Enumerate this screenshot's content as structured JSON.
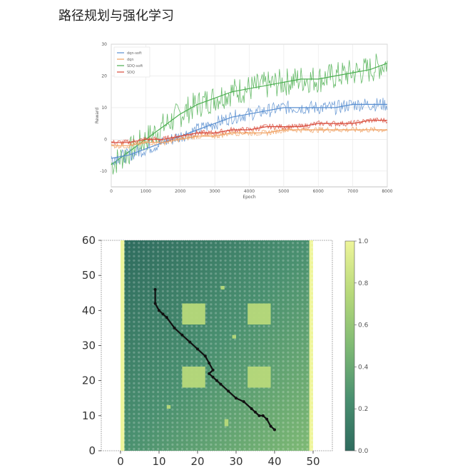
{
  "page": {
    "title": "路径规划与强化学习"
  },
  "colors": {
    "blue": "#5a8fd0",
    "orange": "#f0a060",
    "green": "#4caf50",
    "red": "#d84a3a"
  },
  "chart_data": [
    {
      "type": "line",
      "xlabel": "Epoch",
      "ylabel": "Reward",
      "xlim": [
        0,
        8000
      ],
      "ylim": [
        -15,
        30
      ],
      "xticks": [
        "0",
        "1000",
        "2000",
        "3000",
        "4000",
        "5000",
        "6000",
        "7000",
        "8000"
      ],
      "yticks": [
        "-10",
        "0",
        "10",
        "20",
        "30"
      ],
      "legend_position": "top-left",
      "grid": true,
      "series": [
        {
          "name": "dqn-soft",
          "color": "#5a8fd0",
          "x": [
            0,
            500,
            1000,
            1500,
            2000,
            2500,
            3000,
            3500,
            4000,
            4500,
            5000,
            5500,
            6000,
            6500,
            7000,
            7500,
            8000
          ],
          "values": [
            -6,
            -5,
            -3,
            -1,
            1,
            3,
            5,
            7,
            8,
            9,
            10,
            10,
            10,
            10,
            11,
            11,
            11
          ]
        },
        {
          "name": "dqn",
          "color": "#f0a060",
          "x": [
            0,
            500,
            1000,
            1500,
            2000,
            2500,
            3000,
            3500,
            4000,
            4500,
            5000,
            5500,
            6000,
            6500,
            7000,
            7500,
            8000
          ],
          "values": [
            -2,
            -2,
            -1,
            -1,
            0,
            1,
            1,
            2,
            2,
            2,
            3,
            3,
            3,
            3,
            3,
            3,
            3
          ]
        },
        {
          "name": "SDQ-soft",
          "color": "#4caf50",
          "x": [
            0,
            500,
            1000,
            1500,
            2000,
            2500,
            3000,
            3500,
            4000,
            4500,
            5000,
            5500,
            6000,
            6500,
            7000,
            7500,
            8000
          ],
          "values": [
            -8,
            -4,
            0,
            4,
            8,
            11,
            13,
            15,
            16,
            17,
            18,
            19,
            19,
            20,
            21,
            22,
            24
          ]
        },
        {
          "name": "SDQ",
          "color": "#d84a3a",
          "x": [
            0,
            500,
            1000,
            1500,
            2000,
            2500,
            3000,
            3500,
            4000,
            4500,
            5000,
            5500,
            6000,
            6500,
            7000,
            7500,
            8000
          ],
          "values": [
            -1,
            -1,
            0,
            0,
            1,
            2,
            2,
            3,
            3,
            4,
            4,
            4,
            5,
            5,
            5,
            6,
            6
          ]
        }
      ]
    },
    {
      "type": "heatmap",
      "xlim": [
        -5,
        55
      ],
      "ylim": [
        0,
        60
      ],
      "xticks": [
        "0",
        "10",
        "20",
        "30",
        "40",
        "50"
      ],
      "yticks": [
        "0",
        "10",
        "20",
        "30",
        "40",
        "50",
        "60"
      ],
      "grid_extent": {
        "x": [
          0,
          50
        ],
        "y": [
          0,
          60
        ]
      },
      "colorbar": {
        "range": [
          0,
          1
        ],
        "ticks": [
          "0.0",
          "0.2",
          "0.4",
          "0.6",
          "0.8",
          "1.0"
        ],
        "colormap": [
          "#2e6b5e",
          "#4a9070",
          "#7fba74",
          "#b7d97a",
          "#eef59a"
        ]
      },
      "obstacles": [
        {
          "x": [
            16,
            22
          ],
          "y": [
            36,
            42
          ]
        },
        {
          "x": [
            33,
            39
          ],
          "y": [
            36,
            42
          ]
        },
        {
          "x": [
            16,
            22
          ],
          "y": [
            18,
            24
          ]
        },
        {
          "x": [
            33,
            39
          ],
          "y": [
            18,
            24
          ]
        },
        {
          "x": [
            12,
            13
          ],
          "y": [
            12,
            13
          ]
        },
        {
          "x": [
            27,
            28
          ],
          "y": [
            7,
            9
          ]
        },
        {
          "x": [
            26,
            27
          ],
          "y": [
            46,
            47
          ]
        },
        {
          "x": [
            29,
            30
          ],
          "y": [
            32,
            33
          ]
        }
      ],
      "path": {
        "x": [
          9,
          9,
          10,
          11,
          12,
          14,
          16,
          18,
          20,
          22,
          23,
          24,
          23,
          24,
          25,
          26,
          28,
          30,
          32,
          34,
          35,
          36,
          37,
          38,
          39,
          40
        ],
        "y": [
          46,
          42,
          40,
          39,
          38,
          35,
          33,
          31,
          29,
          27,
          25,
          23,
          22,
          21,
          20,
          19,
          17,
          15,
          14,
          12,
          11,
          10,
          10,
          9,
          7,
          6
        ]
      }
    }
  ]
}
